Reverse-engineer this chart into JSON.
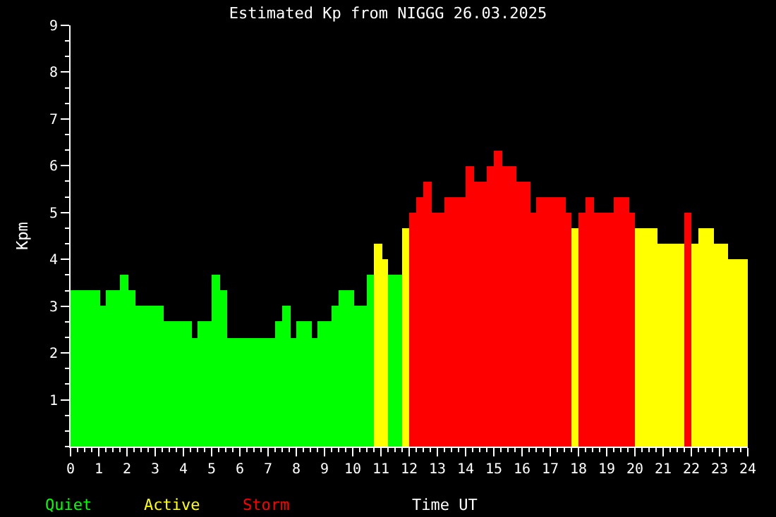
{
  "chart_data": {
    "type": "histogram",
    "title": "Estimated Kp from NIGGG 26.03.2025",
    "xlabel": "Time UT",
    "ylabel": "Kpm",
    "annotations": [
      "Quiet",
      "Active",
      "Storm"
    ],
    "bins": [
      0,
      1.05,
      1.25,
      1.75,
      2.05,
      2.3,
      3.3,
      4.3,
      4.5,
      5.0,
      5.3,
      5.55,
      7.25,
      7.5,
      7.8,
      8.0,
      8.55,
      8.75,
      9.25,
      9.5,
      10.05,
      10.5,
      10.75,
      11.05,
      11.25,
      11.75,
      12.0,
      12.25,
      12.5,
      12.8,
      13.25,
      14.0,
      14.3,
      14.75,
      15.0,
      15.3,
      15.8,
      16.3,
      16.5,
      17.55,
      17.75,
      18.0,
      18.25,
      18.55,
      19.25,
      19.8,
      20.0,
      20.8,
      21.75,
      22.0,
      22.25,
      22.8,
      23.3,
      24
    ],
    "values": [
      3.33,
      3.0,
      3.33,
      3.67,
      3.33,
      3.0,
      2.67,
      2.33,
      2.67,
      3.67,
      3.33,
      2.33,
      2.67,
      3.0,
      2.33,
      2.67,
      2.33,
      2.67,
      3.0,
      3.33,
      3.0,
      3.67,
      4.33,
      4.0,
      3.67,
      4.67,
      5.0,
      5.33,
      5.67,
      5.0,
      5.33,
      6.0,
      5.67,
      6.0,
      6.33,
      6.0,
      5.67,
      5.0,
      5.33,
      5.0,
      4.67,
      5.0,
      5.33,
      5.0,
      5.33,
      5.0,
      4.67,
      4.33,
      5.0,
      4.33,
      4.67,
      4.33,
      4.0
    ],
    "colors": [
      "#00ff00",
      "#00ff00",
      "#00ff00",
      "#00ff00",
      "#00ff00",
      "#00ff00",
      "#00ff00",
      "#00ff00",
      "#00ff00",
      "#00ff00",
      "#00ff00",
      "#00ff00",
      "#00ff00",
      "#00ff00",
      "#00ff00",
      "#00ff00",
      "#00ff00",
      "#00ff00",
      "#00ff00",
      "#00ff00",
      "#00ff00",
      "#00ff00",
      "#ffff00",
      "#ffff00",
      "#00ff00",
      "#ffff00",
      "#ff0000",
      "#ff0000",
      "#ff0000",
      "#ff0000",
      "#ff0000",
      "#ff0000",
      "#ff0000",
      "#ff0000",
      "#ff0000",
      "#ff0000",
      "#ff0000",
      "#ff0000",
      "#ff0000",
      "#ff0000",
      "#ffff00",
      "#ff0000",
      "#ff0000",
      "#ff0000",
      "#ff0000",
      "#ff0000",
      "#ffff00",
      "#ffff00",
      "#ff0000",
      "#ffff00",
      "#ffff00",
      "#ffff00",
      "#ffff00"
    ],
    "xlim": [
      0,
      24
    ],
    "xticks": [
      0,
      1,
      2,
      3,
      4,
      5,
      6,
      7,
      8,
      9,
      10,
      11,
      12,
      13,
      14,
      15,
      16,
      17,
      18,
      19,
      20,
      21,
      22,
      23,
      24
    ],
    "ylim": [
      0,
      9
    ],
    "yticks": [
      1,
      2,
      3,
      4,
      5,
      6,
      7,
      8,
      9
    ],
    "grid": false
  }
}
